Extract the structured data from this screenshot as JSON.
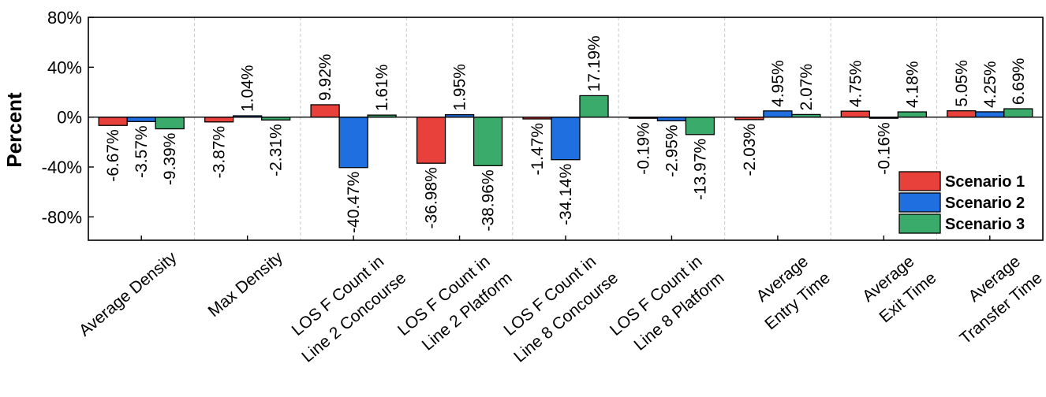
{
  "chart_data": {
    "type": "bar",
    "title": "",
    "xlabel": "",
    "ylabel": "Percent",
    "ylim": [
      -100,
      80
    ],
    "yticks": [
      80,
      40,
      0,
      -40,
      -80
    ],
    "ytick_labels": [
      "80%",
      "40%",
      "0%",
      "-40%",
      "-80%"
    ],
    "grid": "vertical dashed separators between categories",
    "legend_position": "bottom-right",
    "categories": [
      [
        "Average Density"
      ],
      [
        "Max Density"
      ],
      [
        "LOS F Count in",
        "Line 2 Concourse"
      ],
      [
        "LOS F Count in",
        "Line 2 Platform"
      ],
      [
        "LOS F Count in",
        "Line 8 Concourse"
      ],
      [
        "LOS F Count in",
        "Line 8 Platform"
      ],
      [
        "Average",
        "Entry Time"
      ],
      [
        "Average",
        "Exit Time"
      ],
      [
        "Average",
        "Transfer Time"
      ]
    ],
    "series": [
      {
        "name": "Scenario 1",
        "color": "#e8413c",
        "values": [
          -6.67,
          -3.87,
          9.92,
          -36.98,
          -1.47,
          -0.19,
          -2.03,
          4.75,
          5.05
        ],
        "labels": [
          "-6.67%",
          "-3.87%",
          "9.92%",
          "-36.98%",
          "-1.47%",
          "-0.19%",
          "-2.03%",
          "4.75%",
          "5.05%"
        ]
      },
      {
        "name": "Scenario 2",
        "color": "#1f6fe0",
        "values": [
          -3.57,
          1.04,
          -40.47,
          1.95,
          -34.14,
          -2.95,
          4.95,
          -0.16,
          4.25
        ],
        "labels": [
          "-3.57%",
          "1.04%",
          "-40.47%",
          "1.95%",
          "-34.14%",
          "-2.95%",
          "4.95%",
          "-0.16%",
          "4.25%"
        ]
      },
      {
        "name": "Scenario 3",
        "color": "#3aab6a",
        "values": [
          -9.39,
          -2.31,
          1.61,
          -38.96,
          17.19,
          -13.97,
          2.07,
          4.18,
          6.69
        ],
        "labels": [
          "-9.39%",
          "-2.31%",
          "1.61%",
          "-38.96%",
          "17.19%",
          "-13.97%",
          "2.07%",
          "4.18%",
          "6.69%"
        ]
      }
    ]
  }
}
